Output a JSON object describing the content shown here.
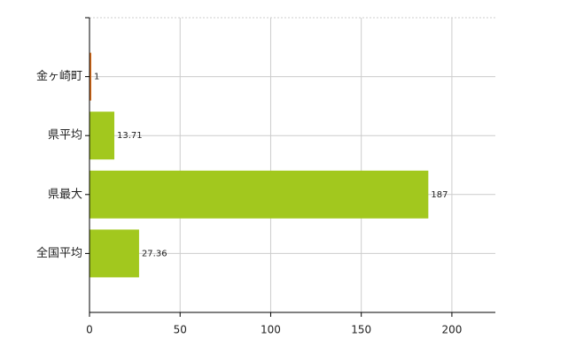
{
  "chart_data": {
    "type": "bar",
    "orientation": "horizontal",
    "categories": [
      "金ヶ崎町",
      "県平均",
      "県最大",
      "全国平均"
    ],
    "values": [
      1,
      13.71,
      187,
      27.36
    ],
    "colors": [
      "#e0701c",
      "#a2c81e",
      "#a2c81e",
      "#a2c81e"
    ],
    "xlim": [
      0,
      224
    ],
    "xticks": [
      0,
      50,
      100,
      150,
      200
    ],
    "grid": true
  }
}
